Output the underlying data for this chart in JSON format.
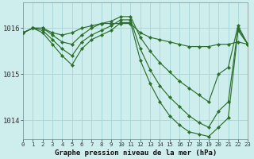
{
  "title": "Graphe pression niveau de la mer (hPa)",
  "background_color": "#ceeeed",
  "grid_color": "#aad8d8",
  "line_color": "#2d6e2d",
  "xlim": [
    0,
    23
  ],
  "ylim": [
    1013.6,
    1016.55
  ],
  "yticks": [
    1014,
    1015,
    1016
  ],
  "xticks": [
    0,
    1,
    2,
    3,
    4,
    5,
    6,
    7,
    8,
    9,
    10,
    11,
    12,
    13,
    14,
    15,
    16,
    17,
    18,
    19,
    20,
    21,
    22,
    23
  ],
  "series": [
    {
      "x": [
        0,
        1,
        2,
        3,
        4,
        5,
        6,
        7,
        8,
        9,
        10,
        11,
        12,
        13,
        14,
        15,
        16,
        17,
        18,
        19,
        20,
        21,
        22,
        23
      ],
      "y": [
        1015.9,
        1016.0,
        1016.0,
        1015.9,
        1015.85,
        1015.9,
        1016.0,
        1016.05,
        1016.1,
        1016.1,
        1016.1,
        1016.1,
        1015.9,
        1015.8,
        1015.75,
        1015.7,
        1015.65,
        1015.6,
        1015.6,
        1015.6,
        1015.65,
        1015.65,
        1015.7,
        1015.65
      ]
    },
    {
      "x": [
        0,
        1,
        2,
        3,
        4,
        5,
        6,
        7,
        8,
        9,
        10,
        11,
        12,
        13,
        14,
        15,
        16,
        17,
        18,
        19,
        20,
        21,
        22,
        23
      ],
      "y": [
        1015.9,
        1016.0,
        1016.0,
        1015.85,
        1015.7,
        1015.65,
        1015.85,
        1016.0,
        1016.1,
        1016.15,
        1016.25,
        1016.25,
        1015.8,
        1015.5,
        1015.25,
        1015.05,
        1014.85,
        1014.7,
        1014.55,
        1014.4,
        1015.0,
        1015.15,
        1016.05,
        1015.65
      ]
    },
    {
      "x": [
        0,
        1,
        2,
        3,
        4,
        5,
        6,
        7,
        8,
        9,
        10,
        11,
        12,
        13,
        14,
        15,
        16,
        17,
        18,
        19,
        20,
        21,
        22,
        23
      ],
      "y": [
        1015.9,
        1016.0,
        1015.95,
        1015.75,
        1015.55,
        1015.4,
        1015.7,
        1015.85,
        1015.95,
        1016.05,
        1016.18,
        1016.18,
        1015.55,
        1015.1,
        1014.75,
        1014.5,
        1014.3,
        1014.1,
        1013.95,
        1013.85,
        1014.2,
        1014.4,
        1016.0,
        1015.65
      ]
    },
    {
      "x": [
        0,
        1,
        2,
        3,
        4,
        5,
        6,
        7,
        8,
        9,
        10,
        11,
        12,
        13,
        14,
        15,
        16,
        17,
        18,
        19,
        20,
        21,
        22,
        23
      ],
      "y": [
        1015.9,
        1016.0,
        1015.9,
        1015.65,
        1015.4,
        1015.2,
        1015.55,
        1015.75,
        1015.85,
        1015.95,
        1016.12,
        1016.12,
        1015.3,
        1014.8,
        1014.4,
        1014.1,
        1013.9,
        1013.75,
        1013.7,
        1013.65,
        1013.85,
        1014.05,
        1015.95,
        1015.65
      ]
    }
  ]
}
